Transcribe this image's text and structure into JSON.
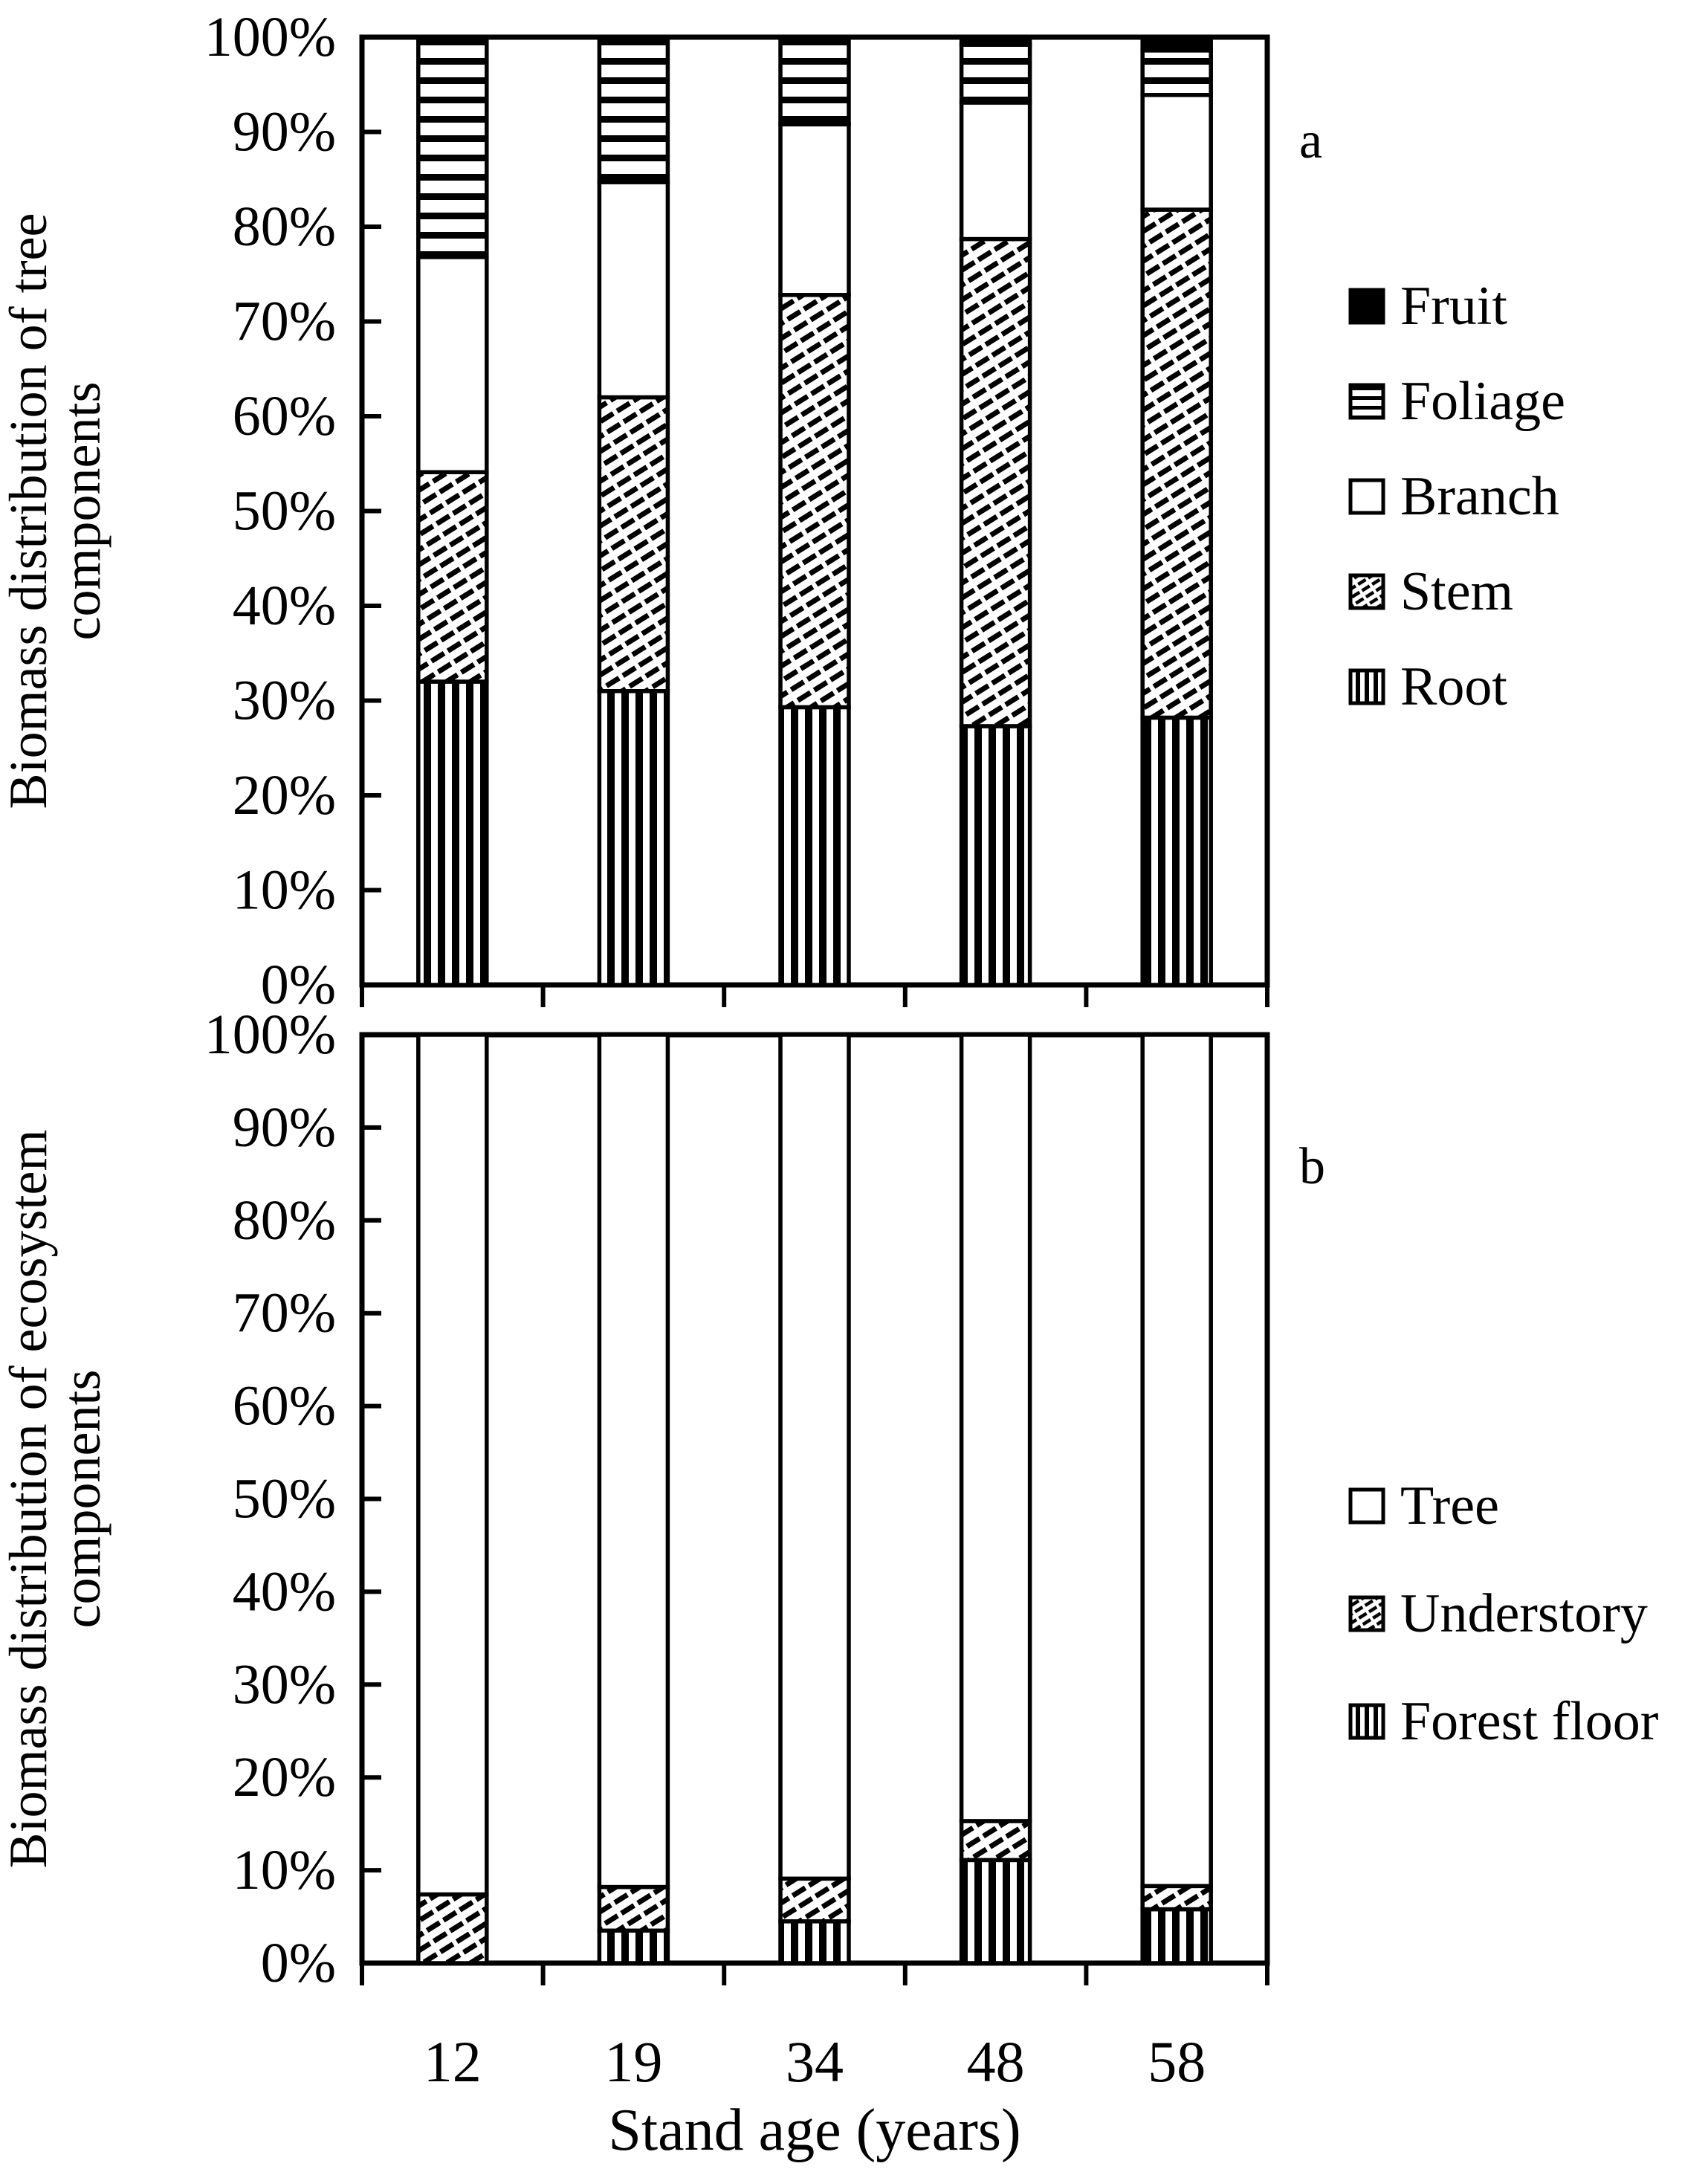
{
  "figure": {
    "x_axis_title": "Stand age (years)",
    "y_tick_labels": [
      "100%",
      "90%",
      "80%",
      "70%",
      "60%",
      "50%",
      "40%",
      "30%",
      "20%",
      "10%",
      "0%"
    ],
    "colors": {
      "ink": "#000000",
      "background": "#ffffff"
    }
  },
  "chart_data": [
    {
      "type": "bar",
      "stacked": true,
      "units": "percent of total",
      "panel_letter": "a",
      "ylabel": "Biomass distribution of tree components",
      "ylabel_lines": [
        "Biomass distribution of tree",
        "components"
      ],
      "xlabel": "Stand age (years)",
      "ylim": [
        0,
        100
      ],
      "y_tick_step": 10,
      "legend_position": "right",
      "legend_order_top_to_bottom": [
        "Fruit",
        "Foliage",
        "Branch",
        "Stem",
        "Root"
      ],
      "categories": [
        "12",
        "19",
        "34",
        "48",
        "58"
      ],
      "series": [
        {
          "name": "Root",
          "pattern": "vertical-stripes",
          "values": [
            32.0,
            31.0,
            29.3,
            27.3,
            28.2
          ]
        },
        {
          "name": "Stem",
          "pattern": "diagonal-hatch",
          "values": [
            22.1,
            31.0,
            43.5,
            51.4,
            53.6
          ]
        },
        {
          "name": "Branch",
          "pattern": "solid-white",
          "values": [
            22.7,
            22.7,
            18.0,
            14.4,
            12.1
          ]
        },
        {
          "name": "Foliage",
          "pattern": "horizontal-stripes",
          "values": [
            23.2,
            15.3,
            9.2,
            6.1,
            4.7
          ]
        },
        {
          "name": "Fruit",
          "pattern": "solid-black",
          "values": [
            0.0,
            0.0,
            0.0,
            0.8,
            1.4
          ]
        }
      ]
    },
    {
      "type": "bar",
      "stacked": true,
      "units": "percent of total",
      "panel_letter": "b",
      "ylabel": "Biomass distribution of ecosystem components",
      "ylabel_lines": [
        "Biomass distribution of ecosystem",
        "components"
      ],
      "xlabel": "Stand age (years)",
      "ylim": [
        0,
        100
      ],
      "y_tick_step": 10,
      "legend_position": "right",
      "legend_order_top_to_bottom": [
        "Tree",
        "Understory",
        "Forest floor"
      ],
      "categories": [
        "12",
        "19",
        "34",
        "48",
        "58"
      ],
      "series": [
        {
          "name": "Forest floor",
          "pattern": "vertical-stripes",
          "values": [
            0.0,
            3.5,
            4.5,
            11.1,
            5.8
          ]
        },
        {
          "name": "Understory",
          "pattern": "diagonal-hatch",
          "values": [
            7.4,
            4.7,
            4.6,
            4.2,
            2.5
          ]
        },
        {
          "name": "Tree",
          "pattern": "solid-white",
          "values": [
            92.6,
            91.8,
            90.9,
            84.7,
            91.7
          ]
        }
      ]
    }
  ]
}
